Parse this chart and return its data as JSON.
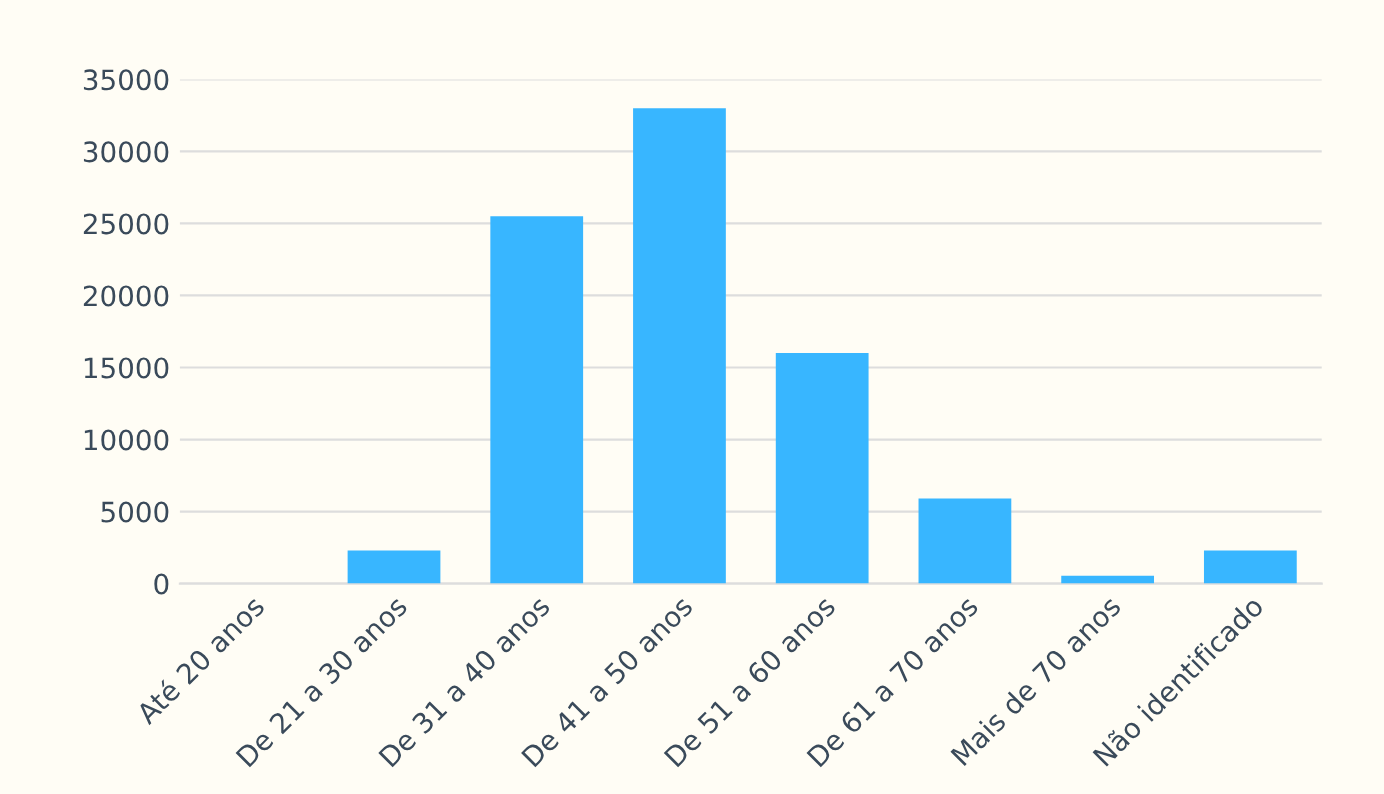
{
  "chart_data": {
    "type": "bar",
    "categories": [
      "Até 20 anos",
      "De 21 a 30 anos",
      "De 31 a 40 anos",
      "De 41 a 50 anos",
      "De 51 a 60 anos",
      "De 61 a 70 anos",
      "Mais de 70 anos",
      "Não identificado"
    ],
    "values": [
      0,
      2300,
      25500,
      33000,
      16000,
      5900,
      550,
      2300
    ],
    "color": "#38b6ff",
    "ylim": [
      0,
      35000
    ],
    "yticks": [
      0,
      5000,
      10000,
      15000,
      20000,
      25000,
      30000,
      35000
    ],
    "grid": "y"
  }
}
